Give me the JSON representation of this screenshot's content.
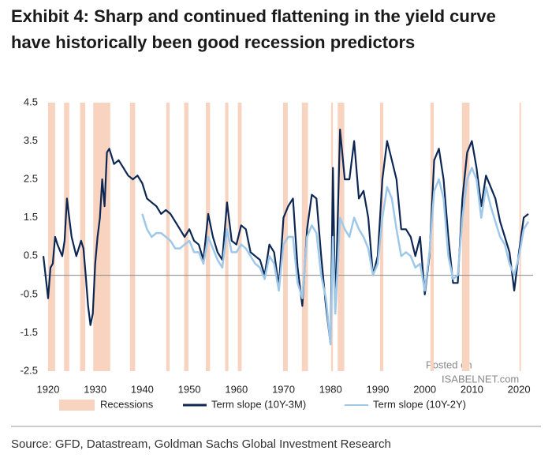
{
  "chart_data": {
    "type": "line",
    "title": [
      "Exhibit 4: Sharp and continued flattening in the yield curve",
      "have historically been good recession predictors"
    ],
    "source": "Source: GFD, Datastream, Goldman Sachs Global Investment Research",
    "watermark": [
      "Posted on",
      "ISABELNET.com"
    ],
    "xlim": [
      1919,
      2023
    ],
    "xticks": [
      1920,
      1930,
      1940,
      1950,
      1960,
      1970,
      1980,
      1990,
      2000,
      2010,
      2020
    ],
    "ylim": [
      -2.5,
      4.5
    ],
    "yticks": [
      4.5,
      3.5,
      2.5,
      1.5,
      0.5,
      -0.5,
      -1.5,
      -2.5
    ],
    "recessions": {
      "name": "Recessions",
      "color": "#f8d3bf",
      "periods": [
        [
          1920,
          1921.5
        ],
        [
          1923.4,
          1924.5
        ],
        [
          1926.8,
          1927.9
        ],
        [
          1929.6,
          1933.2
        ],
        [
          1937.4,
          1938.5
        ],
        [
          1945.1,
          1945.8
        ],
        [
          1948.9,
          1949.8
        ],
        [
          1953.5,
          1954.4
        ],
        [
          1957.6,
          1958.3
        ],
        [
          1960.3,
          1961.1
        ],
        [
          1969.9,
          1970.9
        ],
        [
          1973.9,
          1975.2
        ],
        [
          1980.1,
          1980.5
        ],
        [
          1981.5,
          1982.9
        ],
        [
          1990.5,
          1991.2
        ],
        [
          2001.2,
          2001.9
        ],
        [
          2007.9,
          2009.5
        ],
        [
          2020.1,
          2020.4
        ]
      ]
    },
    "series": [
      {
        "name": "Term slope (10Y-3M)",
        "color": "#0d2754",
        "x": [
          1919,
          1920,
          1920.5,
          1921,
          1921.5,
          1922,
          1923,
          1923.5,
          1924,
          1924.5,
          1925,
          1926,
          1927,
          1927.5,
          1928,
          1928.5,
          1929,
          1929.5,
          1930,
          1930.5,
          1931,
          1931.5,
          1932,
          1932.5,
          1933,
          1934,
          1935,
          1936,
          1937,
          1938,
          1939,
          1940,
          1941,
          1942,
          1943,
          1944,
          1945,
          1946,
          1947,
          1948,
          1949,
          1950,
          1951,
          1952,
          1953,
          1954,
          1955,
          1956,
          1957,
          1958,
          1959,
          1960,
          1961,
          1962,
          1963,
          1964,
          1965,
          1966,
          1967,
          1968,
          1969,
          1970,
          1971,
          1972,
          1973,
          1974,
          1975,
          1976,
          1977,
          1978,
          1979,
          1980,
          1980.5,
          1981,
          1982,
          1983,
          1984,
          1985,
          1986,
          1987,
          1988,
          1989,
          1990,
          1991,
          1992,
          1993,
          1994,
          1995,
          1996,
          1997,
          1998,
          1999,
          2000,
          2001,
          2002,
          2003,
          2004,
          2005,
          2006,
          2007,
          2008,
          2009,
          2010,
          2011,
          2012,
          2013,
          2014,
          2015,
          2016,
          2017,
          2018,
          2019,
          2020,
          2021,
          2022
        ],
        "values": [
          0.5,
          -0.6,
          0.2,
          0.3,
          1.0,
          0.8,
          0.5,
          0.9,
          2.0,
          1.5,
          1.0,
          0.5,
          0.9,
          0.7,
          0,
          -0.8,
          -1.3,
          -1.0,
          0.3,
          1.0,
          1.5,
          2.5,
          1.8,
          3.2,
          3.3,
          2.9,
          3.0,
          2.8,
          2.6,
          2.5,
          2.6,
          2.4,
          2.0,
          1.9,
          1.8,
          1.6,
          1.7,
          1.6,
          1.4,
          1.2,
          1.0,
          1.2,
          0.9,
          0.8,
          0.4,
          1.6,
          1.0,
          0.6,
          0.4,
          1.9,
          0.9,
          0.8,
          1.3,
          1.2,
          0.6,
          0.5,
          0.4,
          0.0,
          0.8,
          0.6,
          -0.3,
          1.5,
          1.8,
          2.0,
          0.2,
          -0.8,
          1.2,
          2.1,
          2.0,
          0.5,
          -0.8,
          -1.8,
          2.8,
          -1.0,
          3.8,
          2.5,
          2.5,
          3.5,
          2.0,
          2.2,
          1.5,
          0.0,
          0.5,
          2.5,
          3.5,
          3.0,
          2.5,
          1.2,
          1.2,
          1.0,
          0.5,
          1.0,
          -0.5,
          0.5,
          3.0,
          3.3,
          2.5,
          1.0,
          -0.2,
          -0.2,
          2.0,
          3.2,
          3.5,
          2.8,
          1.8,
          2.6,
          2.3,
          2.0,
          1.4,
          1.0,
          0.6,
          -0.4,
          0.6,
          1.5,
          1.6
        ]
      },
      {
        "name": "Term slope (10Y-2Y)",
        "color": "#9ec8ea",
        "x": [
          1940,
          1941,
          1942,
          1943,
          1944,
          1945,
          1946,
          1947,
          1948,
          1949,
          1950,
          1951,
          1952,
          1953,
          1954,
          1955,
          1956,
          1957,
          1958,
          1959,
          1960,
          1961,
          1962,
          1963,
          1964,
          1965,
          1966,
          1967,
          1968,
          1969,
          1970,
          1971,
          1972,
          1973,
          1974,
          1975,
          1976,
          1977,
          1978,
          1979,
          1980,
          1980.5,
          1981,
          1982,
          1983,
          1984,
          1985,
          1986,
          1987,
          1988,
          1989,
          1990,
          1991,
          1992,
          1993,
          1994,
          1995,
          1996,
          1997,
          1998,
          1999,
          2000,
          2001,
          2002,
          2003,
          2004,
          2005,
          2006,
          2007,
          2008,
          2009,
          2010,
          2011,
          2012,
          2013,
          2014,
          2015,
          2016,
          2017,
          2018,
          2019,
          2020,
          2021,
          2022
        ],
        "values": [
          1.6,
          1.2,
          1.0,
          1.1,
          1.1,
          1.0,
          0.9,
          0.7,
          0.7,
          0.8,
          0.9,
          0.6,
          0.6,
          0.3,
          1.0,
          0.7,
          0.4,
          0.2,
          1.2,
          0.6,
          0.6,
          0.8,
          0.7,
          0.5,
          0.3,
          0.2,
          -0.1,
          0.5,
          0.3,
          -0.4,
          0.8,
          1.0,
          1.0,
          -0.2,
          -0.6,
          1.0,
          1.3,
          1.1,
          0.0,
          -0.6,
          -1.8,
          1.0,
          -1.0,
          1.5,
          1.2,
          1.0,
          1.5,
          1.2,
          1.0,
          0.7,
          0.0,
          0.3,
          1.5,
          2.3,
          2.0,
          1.2,
          0.5,
          0.6,
          0.5,
          0.2,
          0.3,
          -0.4,
          0.6,
          2.2,
          2.5,
          2.0,
          0.5,
          -0.1,
          0.0,
          1.5,
          2.5,
          2.8,
          2.5,
          1.5,
          2.3,
          1.8,
          1.4,
          1.0,
          0.8,
          0.3,
          0.0,
          0.5,
          1.2,
          1.4
        ]
      }
    ]
  }
}
